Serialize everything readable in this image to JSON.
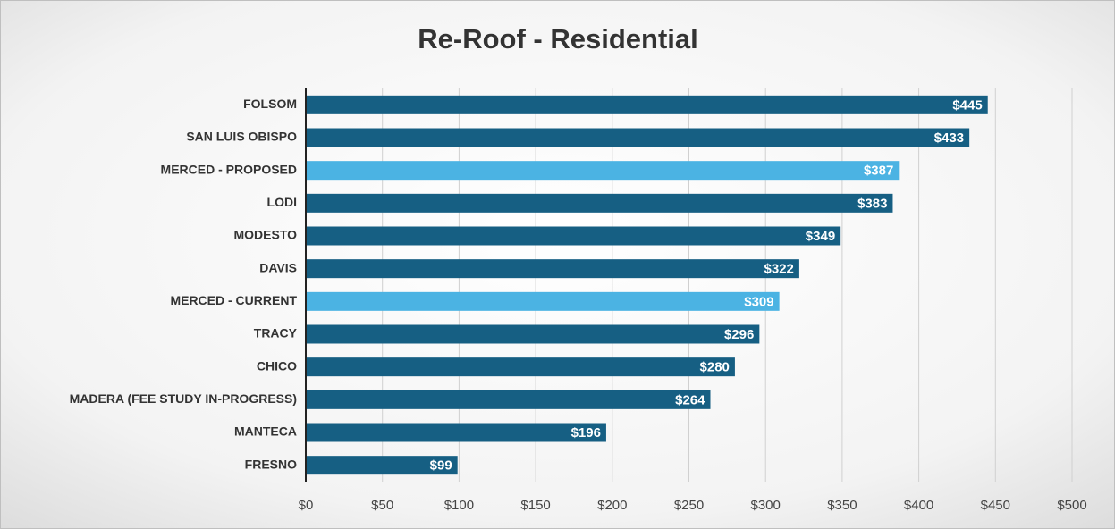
{
  "chart_data": {
    "type": "barh",
    "title": "Re-Roof - Residential",
    "categories": [
      "FOLSOM",
      "SAN LUIS OBISPO",
      "MERCED - PROPOSED",
      "LODI",
      "MODESTO",
      "DAVIS",
      "MERCED - CURRENT",
      "TRACY",
      "CHICO",
      "MADERA (FEE STUDY IN-PROGRESS)",
      "MANTECA",
      "FRESNO"
    ],
    "values": [
      445,
      433,
      387,
      383,
      349,
      322,
      309,
      296,
      280,
      264,
      196,
      99
    ],
    "value_labels": [
      "$445",
      "$433",
      "$387",
      "$383",
      "$349",
      "$322",
      "$309",
      "$296",
      "$280",
      "$264",
      "$196",
      "$99"
    ],
    "colors": [
      "#165f83",
      "#165f83",
      "#4bb3e3",
      "#165f83",
      "#165f83",
      "#165f83",
      "#4bb3e3",
      "#165f83",
      "#165f83",
      "#165f83",
      "#165f83",
      "#165f83"
    ],
    "xlim": [
      0,
      500
    ],
    "xticks": [
      {
        "value": 0,
        "label": "$0"
      },
      {
        "value": 50,
        "label": "$50"
      },
      {
        "value": 100,
        "label": "$100"
      },
      {
        "value": 150,
        "label": "$150"
      },
      {
        "value": 200,
        "label": "$200"
      },
      {
        "value": 250,
        "label": "$250"
      },
      {
        "value": 300,
        "label": "$300"
      },
      {
        "value": 350,
        "label": "$350"
      },
      {
        "value": 400,
        "label": "$400"
      },
      {
        "value": 450,
        "label": "$450"
      },
      {
        "value": 500,
        "label": "$500"
      }
    ],
    "grid": true
  }
}
